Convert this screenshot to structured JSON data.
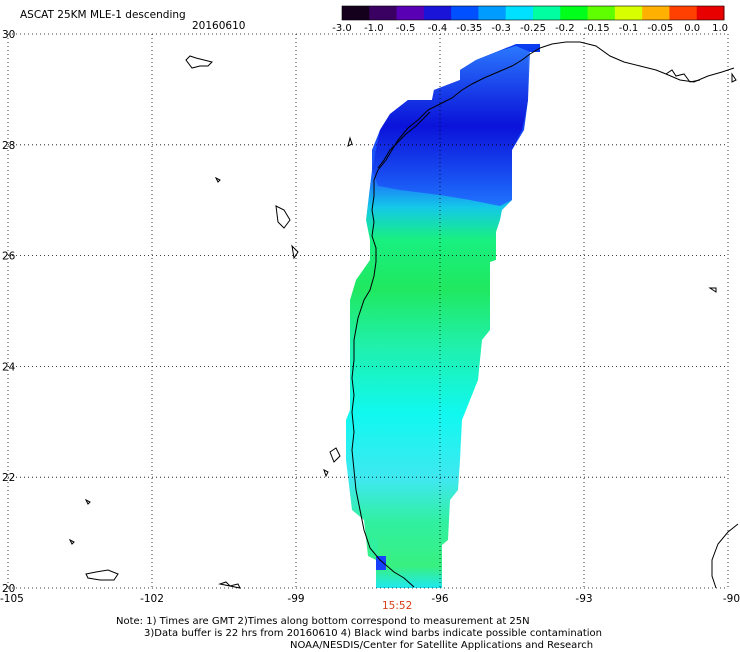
{
  "header": {
    "title": "ASCAT 25KM MLE-1 descending",
    "date": "20160610"
  },
  "colorbar": {
    "labels": [
      "-3.0",
      "-1.0",
      "-0.5",
      "-0.4",
      "-0.35",
      "-0.3",
      "-0.25",
      "-0.2",
      "-0.15",
      "-0.1",
      "-0.05",
      "0.0",
      "1.0"
    ],
    "colors": [
      "#14001c",
      "#3a0062",
      "#5a00b4",
      "#1a14d8",
      "#0050ff",
      "#009cff",
      "#00e0ff",
      "#00ffa0",
      "#00ff1a",
      "#60ff00",
      "#d8ff00",
      "#ffb000",
      "#ff4000",
      "#e80000"
    ]
  },
  "axes": {
    "x_labels": [
      "-105",
      "-102",
      "-99",
      "-96",
      "-93",
      "-90"
    ],
    "y_labels": [
      "30",
      "28",
      "26",
      "24",
      "22",
      "20"
    ]
  },
  "time_label": "15:52",
  "notes": [
    "Note: 1) Times are GMT 2)Times along bottom correspond to measurement at 25N",
    "3)Data buffer is 22 hrs from 20160610 4) Black wind barbs indicate possible contamination",
    "NOAA/NESDIS/Center for Satellite Applications and Research"
  ]
}
